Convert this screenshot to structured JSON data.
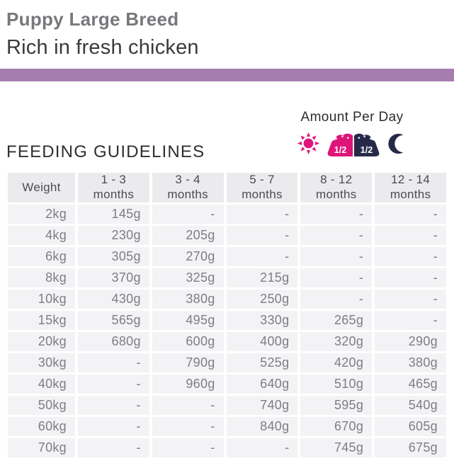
{
  "header": {
    "title": "Puppy Large Breed",
    "subtitle": "Rich in fresh chicken"
  },
  "colors": {
    "accent_bar": "#a77daf",
    "brand_pink": "#de1478",
    "brand_navy": "#262a48"
  },
  "amount_per_day": {
    "label": "Amount Per Day",
    "morning_fraction": "1/2",
    "evening_fraction": "1/2"
  },
  "guidelines": {
    "title": "FEEDING GUIDELINES"
  },
  "table": {
    "columns": [
      "Weight",
      "1 - 3\nmonths",
      "3 - 4\nmonths",
      "5 - 7\nmonths",
      "8 - 12\nmonths",
      "12 - 14\nmonths"
    ],
    "rows": [
      [
        "2kg",
        "145g",
        "-",
        "-",
        "-",
        "-"
      ],
      [
        "4kg",
        "230g",
        "205g",
        "-",
        "-",
        "-"
      ],
      [
        "6kg",
        "305g",
        "270g",
        "-",
        "-",
        "-"
      ],
      [
        "8kg",
        "370g",
        "325g",
        "215g",
        "-",
        "-"
      ],
      [
        "10kg",
        "430g",
        "380g",
        "250g",
        "-",
        "-"
      ],
      [
        "15kg",
        "565g",
        "495g",
        "330g",
        "265g",
        "-"
      ],
      [
        "20kg",
        "680g",
        "600g",
        "400g",
        "320g",
        "290g"
      ],
      [
        "30kg",
        "-",
        "790g",
        "525g",
        "420g",
        "380g"
      ],
      [
        "40kg",
        "-",
        "960g",
        "640g",
        "510g",
        "465g"
      ],
      [
        "50kg",
        "-",
        "-",
        "740g",
        "595g",
        "540g"
      ],
      [
        "60kg",
        "-",
        "-",
        "840g",
        "670g",
        "605g"
      ],
      [
        "70kg",
        "-",
        "-",
        "-",
        "745g",
        "675g"
      ]
    ]
  }
}
